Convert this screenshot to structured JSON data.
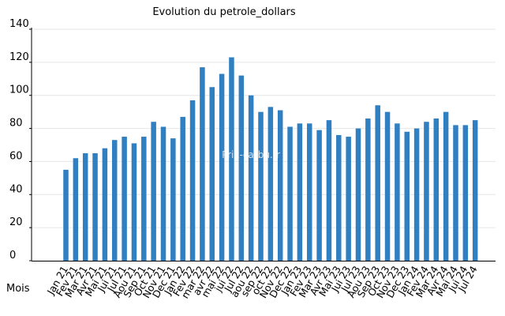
{
  "chart_data": {
    "type": "bar",
    "title": "Evolution du petrole_dollars",
    "xlabel": "Mois",
    "ylabel": "",
    "ylim": [
      0,
      140
    ],
    "yticks": [
      0,
      20,
      40,
      60,
      80,
      100,
      120,
      140
    ],
    "grid": true,
    "legend": "none",
    "watermark": "Prix-carbu.fr",
    "bar_color": "#2f7fc1",
    "grid_color": "#e6e6e6",
    "categories": [
      "Jan 21",
      "Fev 21",
      "Mar 21",
      "Avr 21",
      "Mai 21",
      "Jui 21",
      "Jul 21",
      "Aou 21",
      "Sep 21",
      "Oct 21",
      "Nov 21",
      "Dec 21",
      "Jan 22",
      "Fev 22",
      "mar 22",
      "avr 22",
      "mai 22",
      "jui 22",
      "Jul 22",
      "aou 22",
      "sep 22",
      "oct 22",
      "Nov 22",
      "Dec 22",
      "Jan 23",
      "Fev 23",
      "Mar 23",
      "Avr 23",
      "Mai 23",
      "Jui 23",
      "Jul 23",
      "Aou 23",
      "Sep 23",
      "Oct 23",
      "Nov 23",
      "Dec 23",
      "Jan 24",
      "Fev 24",
      "Mar 24",
      "Avr 24",
      "Mai 24",
      "Jui 24",
      "Jul 24"
    ],
    "values": [
      55,
      62,
      65,
      65,
      68,
      73,
      75,
      71,
      75,
      84,
      81,
      74,
      87,
      97,
      117,
      105,
      113,
      123,
      112,
      100,
      90,
      93,
      91,
      81,
      83,
      83,
      79,
      85,
      76,
      75,
      80,
      86,
      94,
      90,
      83,
      78,
      80,
      84,
      86,
      90,
      82,
      82,
      85
    ]
  }
}
